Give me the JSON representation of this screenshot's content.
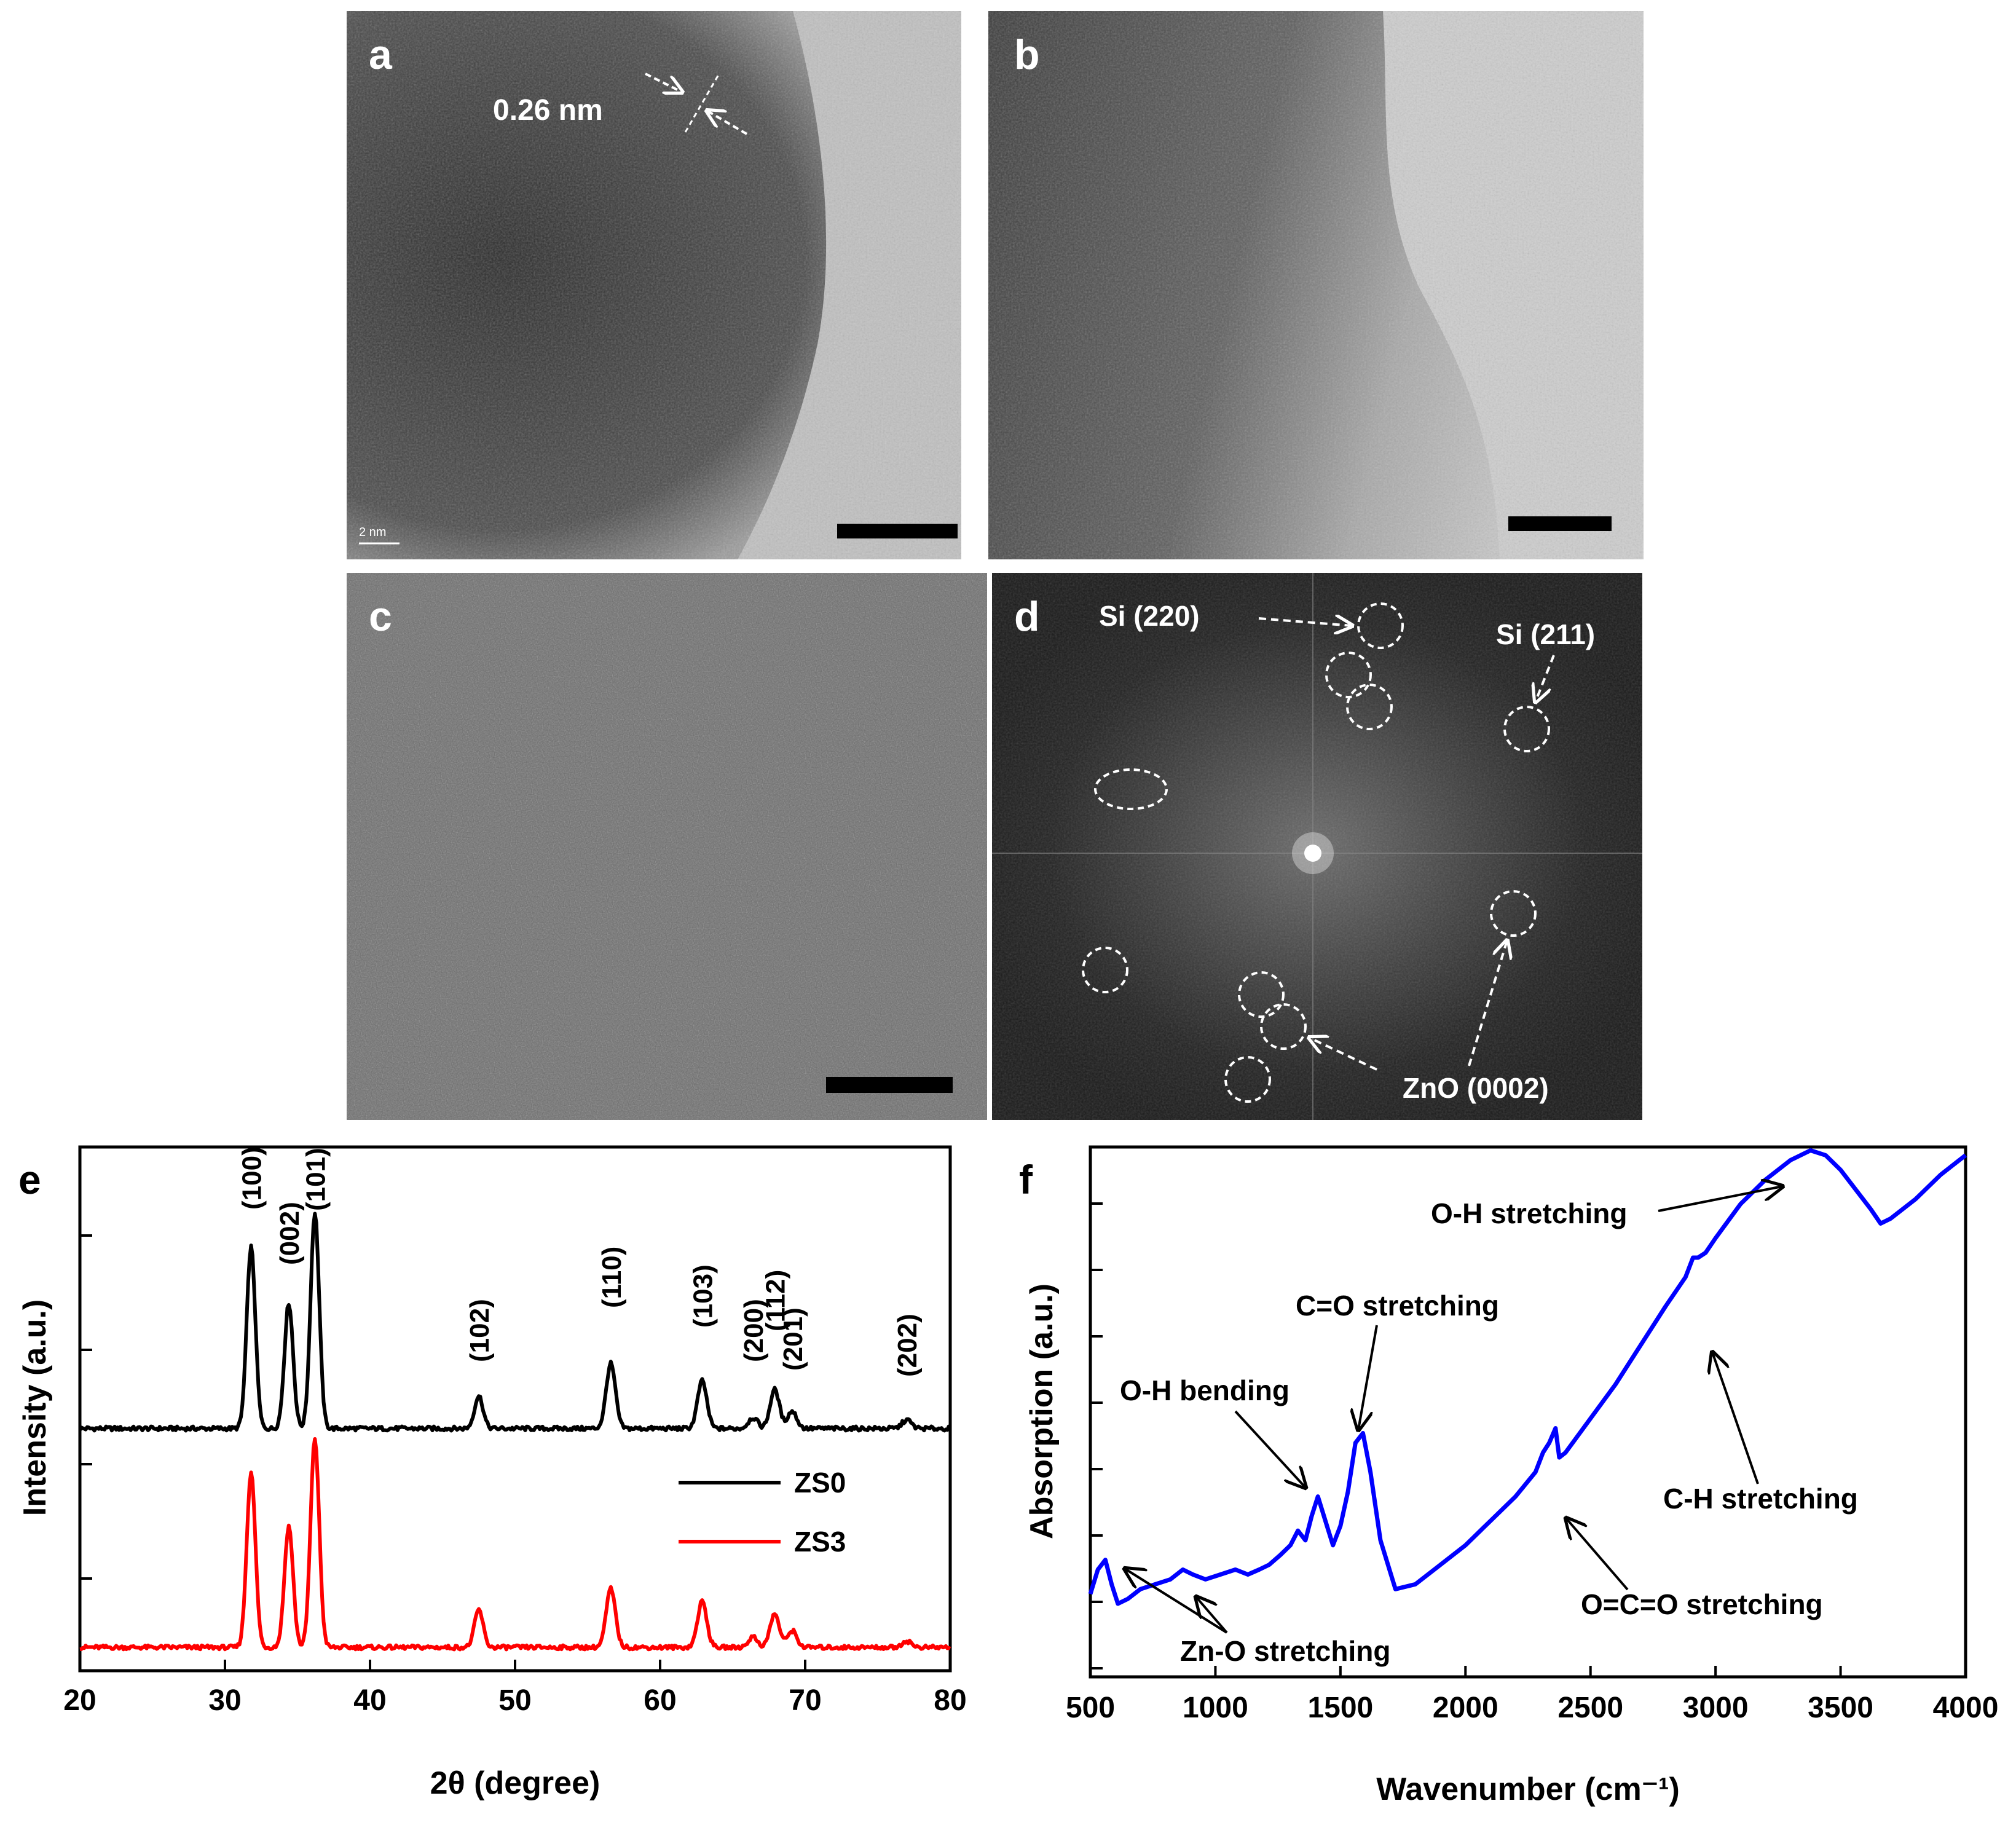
{
  "panels": {
    "a": {
      "letter": "a",
      "spacing_label": "0.26 nm",
      "scale_text": "2 nm"
    },
    "b": {
      "letter": "b"
    },
    "c": {
      "letter": "c"
    },
    "d": {
      "letter": "d",
      "labels": {
        "si220": "Si (220)",
        "si211": "Si (211)",
        "zno0002": "ZnO (0002)"
      }
    },
    "e": {
      "letter": "e"
    },
    "f": {
      "letter": "f"
    }
  },
  "colors": {
    "zs0": "#000000",
    "zs3": "#ff0000",
    "ftir": "#0000ff"
  },
  "chart_data": [
    {
      "panel": "e",
      "type": "line",
      "xlabel": "2θ (degree)",
      "ylabel": "Intensity (a.u.)",
      "xlim": [
        20,
        80
      ],
      "xticks": [
        20,
        30,
        40,
        50,
        60,
        70,
        80
      ],
      "legend": {
        "placement": "center-right",
        "entries": [
          "ZS0",
          "ZS3"
        ]
      },
      "peak_labels": [
        "(100)",
        "(002)",
        "(101)",
        "(102)",
        "(110)",
        "(103)",
        "(200)",
        "(112)",
        "(201)",
        "(202)"
      ],
      "peaks_2theta": [
        31.8,
        34.4,
        36.2,
        47.5,
        56.6,
        62.9,
        66.4,
        67.9,
        69.1,
        77.0
      ],
      "series": [
        {
          "name": "ZS0",
          "color": "#000000",
          "peaks": [
            [
              31.8,
              0.84
            ],
            [
              34.4,
              0.58
            ],
            [
              36.2,
              1.0
            ],
            [
              47.5,
              0.15
            ],
            [
              56.6,
              0.3
            ],
            [
              62.9,
              0.22
            ],
            [
              66.4,
              0.05
            ],
            [
              67.9,
              0.18
            ],
            [
              69.1,
              0.08
            ],
            [
              77.0,
              0.04
            ]
          ]
        },
        {
          "name": "ZS3",
          "color": "#ff0000",
          "peaks": [
            [
              31.8,
              0.84
            ],
            [
              34.4,
              0.58
            ],
            [
              36.2,
              1.0
            ],
            [
              47.5,
              0.18
            ],
            [
              56.6,
              0.28
            ],
            [
              62.9,
              0.22
            ],
            [
              66.4,
              0.05
            ],
            [
              67.9,
              0.16
            ],
            [
              69.1,
              0.08
            ],
            [
              77.0,
              0.03
            ]
          ]
        }
      ]
    },
    {
      "panel": "f",
      "type": "line",
      "xlabel": "Wavenumber (cm⁻¹)",
      "ylabel": "Absorption (a.u.)",
      "xlim": [
        500,
        4000
      ],
      "xticks": [
        500,
        1000,
        1500,
        2000,
        2500,
        3000,
        3500,
        4000
      ],
      "series": [
        {
          "name": "",
          "color": "#0000ff",
          "x": [
            500,
            530,
            560,
            585,
            610,
            650,
            700,
            760,
            820,
            870,
            910,
            960,
            1020,
            1080,
            1130,
            1175,
            1215,
            1260,
            1300,
            1330,
            1360,
            1385,
            1410,
            1440,
            1470,
            1500,
            1530,
            1560,
            1590,
            1620,
            1660,
            1720,
            1800,
            1900,
            2000,
            2100,
            2200,
            2280,
            2310,
            2335,
            2360,
            2375,
            2400,
            2500,
            2600,
            2700,
            2800,
            2880,
            2910,
            2930,
            2960,
            3000,
            3100,
            3200,
            3300,
            3380,
            3440,
            3500,
            3560,
            3620,
            3660,
            3700,
            3800,
            3900,
            4000
          ],
          "y": [
            0.17,
            0.22,
            0.24,
            0.19,
            0.15,
            0.16,
            0.18,
            0.19,
            0.2,
            0.22,
            0.21,
            0.2,
            0.21,
            0.22,
            0.21,
            0.22,
            0.23,
            0.25,
            0.27,
            0.3,
            0.28,
            0.33,
            0.37,
            0.32,
            0.27,
            0.31,
            0.38,
            0.48,
            0.5,
            0.42,
            0.28,
            0.18,
            0.19,
            0.23,
            0.27,
            0.32,
            0.37,
            0.42,
            0.46,
            0.48,
            0.51,
            0.45,
            0.46,
            0.53,
            0.6,
            0.68,
            0.76,
            0.82,
            0.86,
            0.86,
            0.87,
            0.9,
            0.97,
            1.02,
            1.06,
            1.08,
            1.07,
            1.04,
            1.0,
            0.96,
            0.93,
            0.94,
            0.98,
            1.03,
            1.07
          ]
        }
      ],
      "annotations": [
        "O-H stretching",
        "C=O stretching",
        "O-H bending",
        "C-H stretching",
        "O=C=O stretching",
        "Zn-O stretching"
      ]
    }
  ]
}
